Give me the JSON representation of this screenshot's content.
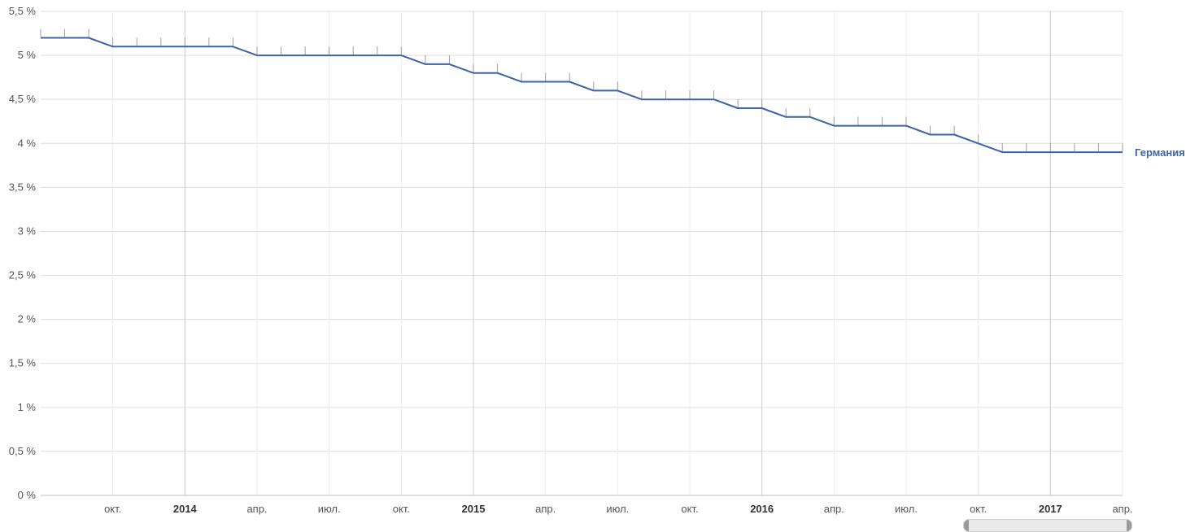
{
  "chart_data": {
    "type": "line",
    "title": "",
    "xlabel": "",
    "ylabel": "",
    "y_ticks": [
      "0 %",
      "0,5 %",
      "1 %",
      "1,5 %",
      "2 %",
      "2,5 %",
      "3 %",
      "3,5 %",
      "4 %",
      "4,5 %",
      "5 %",
      "5,5 %"
    ],
    "ylim": [
      0,
      5.5
    ],
    "xlim": [
      "2013-07",
      "2017-04"
    ],
    "x_ticks": [
      {
        "date": "2013-10",
        "label": "окт.",
        "kind": "month"
      },
      {
        "date": "2014-01",
        "label": "2014",
        "kind": "year"
      },
      {
        "date": "2014-04",
        "label": "апр.",
        "kind": "month"
      },
      {
        "date": "2014-07",
        "label": "июл.",
        "kind": "month"
      },
      {
        "date": "2014-10",
        "label": "окт.",
        "kind": "month"
      },
      {
        "date": "2015-01",
        "label": "2015",
        "kind": "year"
      },
      {
        "date": "2015-04",
        "label": "апр.",
        "kind": "month"
      },
      {
        "date": "2015-07",
        "label": "июл.",
        "kind": "month"
      },
      {
        "date": "2015-10",
        "label": "окт.",
        "kind": "month"
      },
      {
        "date": "2016-01",
        "label": "2016",
        "kind": "year"
      },
      {
        "date": "2016-04",
        "label": "апр.",
        "kind": "month"
      },
      {
        "date": "2016-07",
        "label": "июл.",
        "kind": "month"
      },
      {
        "date": "2016-10",
        "label": "окт.",
        "kind": "month"
      },
      {
        "date": "2017-01",
        "label": "2017",
        "kind": "year"
      },
      {
        "date": "2017-04",
        "label": "апр.",
        "kind": "month"
      }
    ],
    "grid": true,
    "legend": "right end of series line",
    "series": [
      {
        "name": "Германия",
        "color": "#3a63a8",
        "x": [
          "2013-07",
          "2013-08",
          "2013-09",
          "2013-10",
          "2013-11",
          "2013-12",
          "2014-01",
          "2014-02",
          "2014-03",
          "2014-04",
          "2014-05",
          "2014-06",
          "2014-07",
          "2014-08",
          "2014-09",
          "2014-10",
          "2014-11",
          "2014-12",
          "2015-01",
          "2015-02",
          "2015-03",
          "2015-04",
          "2015-05",
          "2015-06",
          "2015-07",
          "2015-08",
          "2015-09",
          "2015-10",
          "2015-11",
          "2015-12",
          "2016-01",
          "2016-02",
          "2016-03",
          "2016-04",
          "2016-05",
          "2016-06",
          "2016-07",
          "2016-08",
          "2016-09",
          "2016-10",
          "2016-11",
          "2016-12",
          "2017-01",
          "2017-02",
          "2017-03",
          "2017-04"
        ],
        "values": [
          5.2,
          5.2,
          5.2,
          5.1,
          5.1,
          5.1,
          5.1,
          5.1,
          5.1,
          5.0,
          5.0,
          5.0,
          5.0,
          5.0,
          5.0,
          5.0,
          4.9,
          4.9,
          4.8,
          4.8,
          4.7,
          4.7,
          4.7,
          4.6,
          4.6,
          4.5,
          4.5,
          4.5,
          4.5,
          4.4,
          4.4,
          4.3,
          4.3,
          4.2,
          4.2,
          4.2,
          4.2,
          4.1,
          4.1,
          4.0,
          3.9,
          3.9,
          3.9,
          3.9,
          3.9,
          3.9
        ]
      }
    ]
  }
}
